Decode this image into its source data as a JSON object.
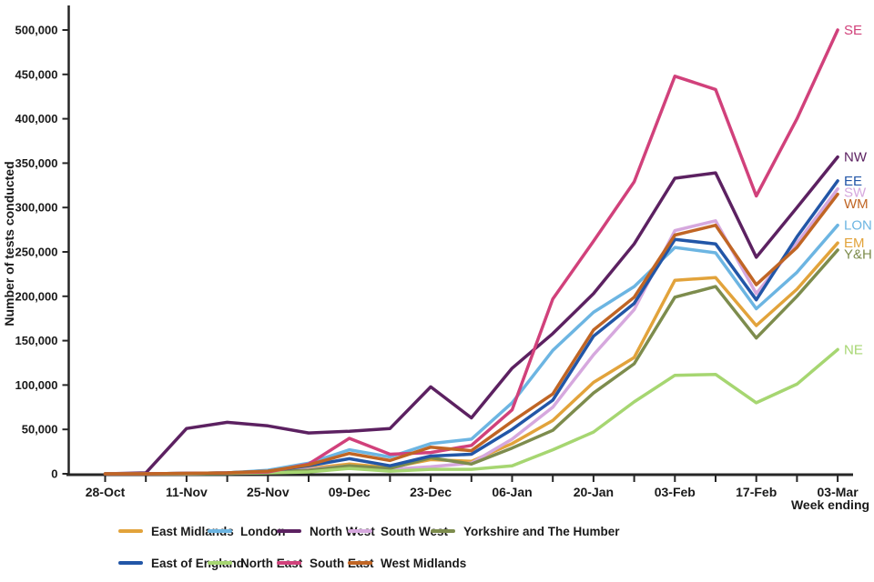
{
  "chart_data": {
    "type": "line",
    "title": "",
    "xlabel": "Week ending",
    "ylabel": "Number of tests conducted",
    "ylim": [
      0,
      500000
    ],
    "grid": false,
    "legend_position": "bottom",
    "y_tick_labels": [
      "0",
      "50,000",
      "100,000",
      "150,000",
      "200,000",
      "250,000",
      "300,000",
      "350,000",
      "400,000",
      "450,000",
      "500,000"
    ],
    "y_tick_values": [
      0,
      50000,
      100000,
      150000,
      200000,
      250000,
      300000,
      350000,
      400000,
      450000,
      500000
    ],
    "x": [
      "28-Oct",
      "04-Nov",
      "11-Nov",
      "18-Nov",
      "25-Nov",
      "02-Dec",
      "09-Dec",
      "16-Dec",
      "23-Dec",
      "30-Dec",
      "06-Jan",
      "13-Jan",
      "20-Jan",
      "27-Jan",
      "03-Feb",
      "10-Feb",
      "17-Feb",
      "24-Feb",
      "03-Mar"
    ],
    "x_label_every": 2,
    "series": [
      {
        "name": "East Midlands",
        "short": "EM",
        "color": "#E2A33B",
        "values": [
          0,
          0,
          500,
          1000,
          3000,
          6000,
          11000,
          7000,
          16000,
          14000,
          34000,
          60000,
          103000,
          131000,
          218000,
          221000,
          167000,
          208000,
          260000
        ]
      },
      {
        "name": "London",
        "short": "LON",
        "color": "#6CB5E2",
        "values": [
          0,
          0,
          500,
          1000,
          4000,
          12000,
          27000,
          19000,
          34000,
          39000,
          80000,
          139000,
          182000,
          211000,
          255000,
          249000,
          186000,
          227000,
          280000
        ]
      },
      {
        "name": "North West",
        "short": "NW",
        "color": "#5C2161",
        "values": [
          0,
          1000,
          51000,
          58000,
          54000,
          46000,
          48000,
          51000,
          98000,
          63000,
          119000,
          158000,
          203000,
          259000,
          333000,
          339000,
          244000,
          300000,
          357000
        ]
      },
      {
        "name": "South West",
        "short": "SW",
        "color": "#D6A8DE",
        "values": [
          0,
          0,
          0,
          500,
          2000,
          5000,
          9000,
          5000,
          8000,
          12000,
          39000,
          75000,
          134000,
          185000,
          274000,
          285000,
          203000,
          260000,
          321000
        ]
      },
      {
        "name": "Yorkshire and The Humber",
        "short": "Y&H",
        "color": "#7D8C4D",
        "values": [
          0,
          0,
          0,
          500,
          2000,
          4000,
          9000,
          6000,
          18000,
          11000,
          29000,
          49000,
          91000,
          124000,
          199000,
          211000,
          153000,
          200000,
          252000
        ]
      },
      {
        "name": "East of England",
        "short": "EE",
        "color": "#2256A7",
        "values": [
          0,
          0,
          500,
          1000,
          3000,
          9000,
          17000,
          9000,
          20000,
          22000,
          50000,
          83000,
          155000,
          192000,
          264000,
          259000,
          196000,
          267000,
          330000
        ]
      },
      {
        "name": "North East",
        "short": "NE",
        "color": "#A6D671",
        "values": [
          0,
          0,
          0,
          500,
          1000,
          2000,
          6000,
          3000,
          5000,
          5000,
          9000,
          27000,
          47000,
          81000,
          111000,
          112000,
          80000,
          101000,
          140000
        ]
      },
      {
        "name": "South East",
        "short": "SE",
        "color": "#D1417B",
        "values": [
          0,
          0,
          500,
          1000,
          2000,
          11000,
          40000,
          22000,
          24000,
          32000,
          72000,
          197000,
          262000,
          329000,
          448000,
          433000,
          313000,
          400000,
          500000
        ]
      },
      {
        "name": "West Midlands",
        "short": "WM",
        "color": "#C06524",
        "values": [
          0,
          0,
          500,
          1000,
          3000,
          10000,
          23000,
          15000,
          30000,
          26000,
          59000,
          90000,
          162000,
          199000,
          269000,
          280000,
          213000,
          255000,
          315000
        ]
      }
    ],
    "legend_rows": [
      [
        0,
        1,
        2,
        3,
        4
      ],
      [
        5,
        6,
        7,
        8
      ]
    ]
  }
}
